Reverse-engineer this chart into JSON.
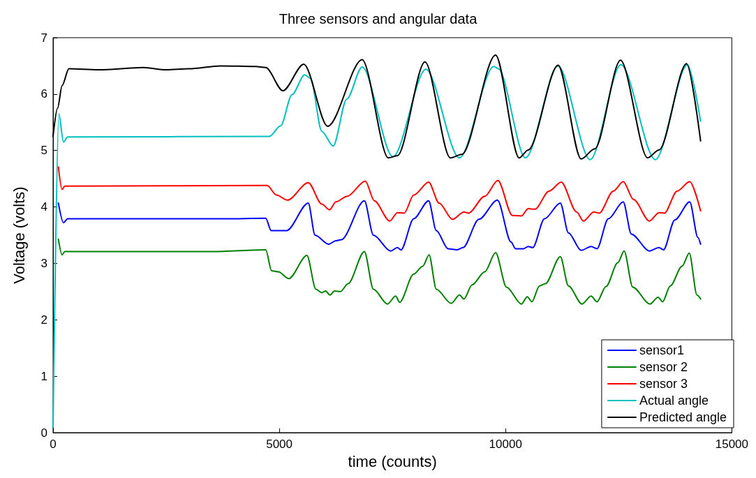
{
  "chart_data": {
    "type": "line",
    "title": "Three sensors and angular data",
    "xlabel": "time (counts)",
    "ylabel": "Voltage (volts)",
    "xlim": [
      0,
      15000
    ],
    "xticks": [
      0,
      5000,
      10000,
      15000
    ],
    "ylim": [
      0,
      7
    ],
    "yticks": [
      0,
      1,
      2,
      3,
      4,
      5,
      6,
      7
    ],
    "grid": false,
    "legend": "bottom right",
    "marker": "none",
    "line_style": "solid",
    "series": [
      {
        "name": "sensor1",
        "color": "#0000ff",
        "x": [
          117,
          231,
          322,
          3770,
          4700,
          4820,
          5160,
          5640,
          5790,
          6090,
          6250,
          6370,
          6880,
          7080,
          7460,
          7610,
          7690,
          7970,
          8300,
          8470,
          8730,
          8930,
          9060,
          9410,
          9820,
          10120,
          10220,
          10400,
          10500,
          10600,
          10860,
          11210,
          11390,
          11670,
          11890,
          12020,
          12270,
          12600,
          12780,
          13180,
          13390,
          13490,
          13740,
          14070,
          14250,
          14310
        ],
        "values": [
          4.07,
          3.72,
          3.79,
          3.79,
          3.8,
          3.58,
          3.58,
          4.07,
          3.5,
          3.34,
          3.4,
          3.42,
          4.11,
          3.5,
          3.22,
          3.28,
          3.24,
          3.79,
          4.11,
          3.58,
          3.26,
          3.24,
          3.28,
          3.78,
          4.12,
          3.38,
          3.26,
          3.26,
          3.3,
          3.28,
          3.79,
          4.07,
          3.54,
          3.23,
          3.3,
          3.26,
          3.79,
          4.09,
          3.52,
          3.22,
          3.28,
          3.24,
          3.77,
          4.09,
          3.46,
          3.34
        ]
      },
      {
        "name": "sensor 2",
        "color": "#008000",
        "x": [
          117,
          200,
          260,
          3530,
          4700,
          4830,
          4980,
          5210,
          5610,
          5810,
          5940,
          6020,
          6120,
          6220,
          6350,
          6520,
          6880,
          7080,
          7390,
          7570,
          7660,
          7970,
          8170,
          8310,
          8470,
          8800,
          8980,
          9080,
          9260,
          9540,
          9780,
          10020,
          10350,
          10480,
          10580,
          10750,
          10880,
          11210,
          11390,
          11690,
          11890,
          12020,
          12220,
          12480,
          12620,
          12810,
          13190,
          13370,
          13470,
          13640,
          13900,
          14060,
          14230,
          14310
        ],
        "values": [
          3.43,
          3.15,
          3.21,
          3.21,
          3.24,
          2.87,
          2.85,
          2.73,
          3.14,
          2.54,
          2.48,
          2.51,
          2.44,
          2.51,
          2.5,
          2.64,
          3.21,
          2.54,
          2.28,
          2.42,
          2.31,
          2.81,
          2.95,
          3.15,
          2.54,
          2.29,
          2.44,
          2.37,
          2.62,
          2.85,
          3.19,
          2.58,
          2.28,
          2.41,
          2.32,
          2.6,
          2.64,
          3.12,
          2.6,
          2.28,
          2.42,
          2.32,
          2.59,
          3.01,
          3.22,
          2.58,
          2.28,
          2.4,
          2.32,
          2.6,
          2.95,
          3.18,
          2.44,
          2.37
        ]
      },
      {
        "name": "sensor 3",
        "color": "#ff0000",
        "x": [
          117,
          200,
          260,
          4730,
          4940,
          5180,
          5640,
          5940,
          6110,
          6250,
          6500,
          6900,
          7100,
          7440,
          7610,
          7760,
          7970,
          8300,
          8530,
          8830,
          9080,
          9180,
          9540,
          9830,
          10150,
          10350,
          10500,
          10650,
          10960,
          11230,
          11570,
          11720,
          11950,
          12070,
          12380,
          12600,
          12830,
          13180,
          13390,
          13510,
          13790,
          14070,
          14310
        ],
        "values": [
          4.71,
          4.31,
          4.37,
          4.38,
          4.21,
          4.12,
          4.43,
          4.05,
          3.95,
          4.09,
          4.19,
          4.46,
          4.11,
          3.75,
          3.9,
          3.89,
          4.21,
          4.44,
          4.07,
          3.78,
          3.91,
          3.89,
          4.19,
          4.47,
          3.85,
          3.84,
          3.97,
          3.96,
          4.28,
          4.44,
          3.91,
          3.75,
          3.91,
          3.89,
          4.28,
          4.45,
          4.13,
          3.75,
          3.9,
          3.89,
          4.28,
          4.45,
          3.93
        ]
      },
      {
        "name": "Actual angle",
        "color": "#00bfbf",
        "x": [
          0,
          128,
          231,
          322,
          4780,
          5030,
          5280,
          5560,
          5690,
          5940,
          6190,
          6490,
          6830,
          7510,
          8240,
          8980,
          9740,
          9840,
          10440,
          11160,
          11870,
          12550,
          13310,
          14020,
          14310
        ],
        "values": [
          0.1,
          5.65,
          5.15,
          5.24,
          5.25,
          5.44,
          5.99,
          6.34,
          6.28,
          5.34,
          5.08,
          5.91,
          6.48,
          4.89,
          6.44,
          4.87,
          6.49,
          6.45,
          4.87,
          6.5,
          4.84,
          6.52,
          4.84,
          6.52,
          5.52
        ]
      },
      {
        "name": "Predicted angle",
        "color": "#000000",
        "x": [
          0,
          100,
          200,
          350,
          1000,
          2000,
          2500,
          3000,
          3700,
          4470,
          4700,
          5080,
          5540,
          6070,
          6830,
          7410,
          7610,
          8220,
          8780,
          9030,
          9780,
          10300,
          10500,
          11160,
          11670,
          11970,
          12540,
          13140,
          13390,
          14000,
          14310
        ],
        "values": [
          5.25,
          5.75,
          6.15,
          6.45,
          6.43,
          6.47,
          6.43,
          6.45,
          6.5,
          6.49,
          6.47,
          6.06,
          6.53,
          5.43,
          6.61,
          4.87,
          4.91,
          6.57,
          4.87,
          4.93,
          6.69,
          4.87,
          5.01,
          6.51,
          4.85,
          5.03,
          6.6,
          4.87,
          5.01,
          6.54,
          5.17
        ]
      }
    ]
  }
}
